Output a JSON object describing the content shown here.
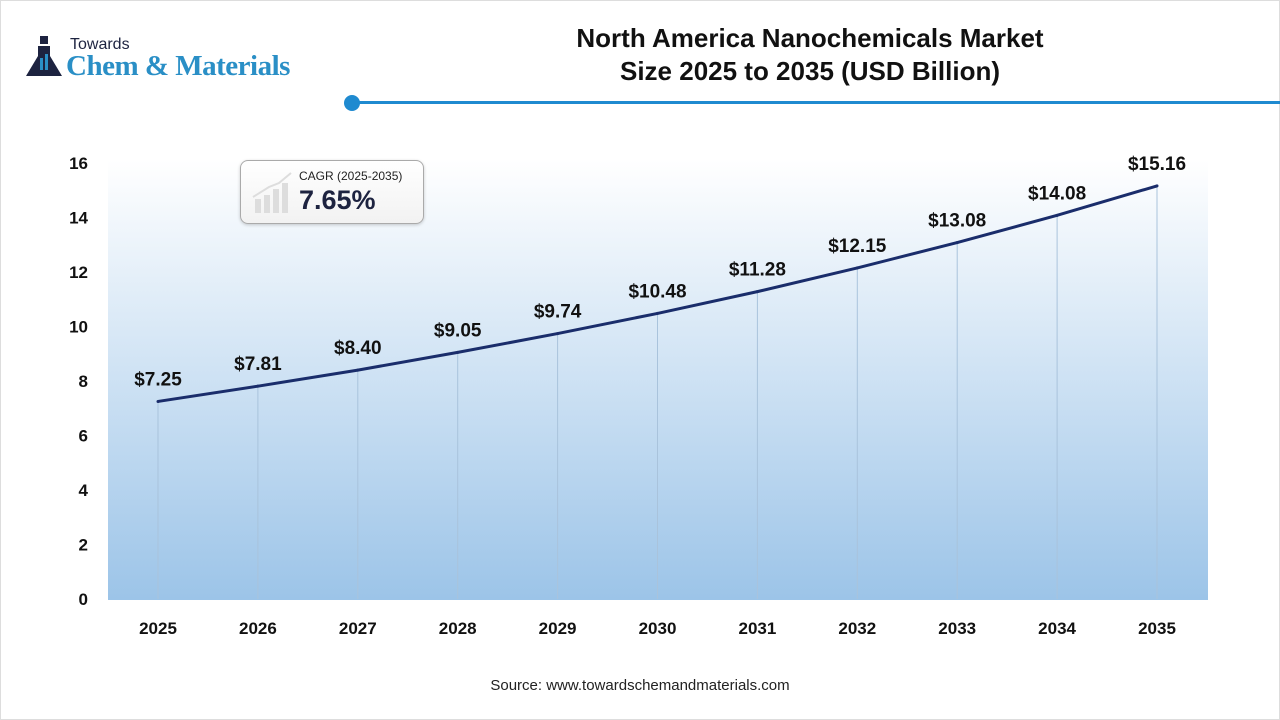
{
  "logo": {
    "line1": "Towards",
    "line2": "Chem & Materials"
  },
  "title_line1": "North America Nanochemicals Market",
  "title_line2": "Size 2025 to 2035 (USD Billion)",
  "cagr": {
    "label": "CAGR (2025-2035)",
    "value": "7.65%"
  },
  "source": "Source: www.towardschemandmaterials.com",
  "colors": {
    "line": "#1a2d6b",
    "accent": "#1f8ad0",
    "fill_bottom": "#9cc4e8"
  },
  "chart_data": {
    "type": "area",
    "categories": [
      "2025",
      "2026",
      "2027",
      "2028",
      "2029",
      "2030",
      "2031",
      "2032",
      "2033",
      "2034",
      "2035"
    ],
    "values": [
      7.25,
      7.81,
      8.4,
      9.05,
      9.74,
      10.48,
      11.28,
      12.15,
      13.08,
      14.08,
      15.16
    ],
    "data_labels": [
      "$7.25",
      "$7.81",
      "$8.40",
      "$9.05",
      "$9.74",
      "$10.48",
      "$11.28",
      "$12.15",
      "$13.08",
      "$14.08",
      "$15.16"
    ],
    "yticks": [
      0,
      2,
      4,
      6,
      8,
      10,
      12,
      14,
      16
    ],
    "ylim": [
      0,
      16
    ],
    "grid": "vertical drop lines",
    "legend": "none"
  }
}
